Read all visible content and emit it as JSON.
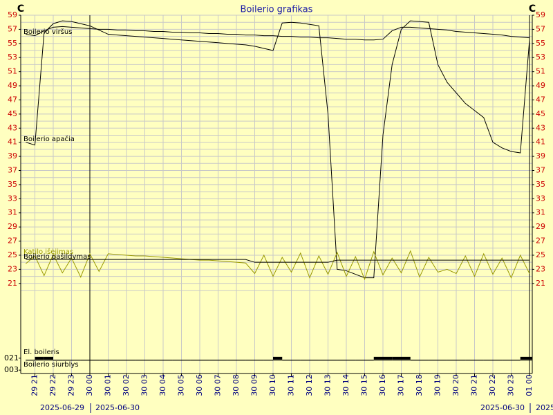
{
  "chart_data": {
    "type": "line",
    "title": "Boilerio grafikas",
    "y_unit": "C",
    "date_labels": [
      "2025-06-29",
      "2025-06-30",
      "2025-06-30",
      "2025"
    ],
    "categories": [
      null,
      "29 21",
      null,
      "29 22",
      null,
      "29 23",
      null,
      "30 00",
      null,
      "30 01",
      null,
      "30 02",
      null,
      "30 03",
      null,
      "30 04",
      null,
      "30 05",
      null,
      "30 06",
      null,
      "30 07",
      null,
      "30 08",
      null,
      "30 09",
      null,
      "30 10",
      null,
      "30 11",
      null,
      "30 12",
      null,
      "30 13",
      null,
      "30 14",
      null,
      "30 15",
      null,
      "30 16",
      null,
      "30 17",
      null,
      "30 18",
      null,
      "30 19",
      null,
      "30 20",
      null,
      "30 21",
      null,
      "30 22",
      null,
      "30 23",
      null,
      "01 00"
    ],
    "ylim": [
      20,
      59
    ],
    "yticks": [
      59,
      57,
      55,
      53,
      51,
      49,
      47,
      45,
      43,
      41,
      39,
      37,
      35,
      33,
      31,
      29,
      27,
      25,
      23,
      21
    ],
    "minor_yticks": [
      58,
      56,
      54,
      52,
      50,
      48,
      46,
      44,
      42,
      40,
      38,
      36,
      34,
      32,
      30,
      28,
      26,
      24,
      22,
      20
    ],
    "y2lim": [
      0,
      24
    ],
    "y2ticks": [
      {
        "value": 21,
        "label": "021"
      },
      {
        "value": 3,
        "label": "003"
      }
    ],
    "grid": true,
    "series": [
      {
        "name": "Boilerio viršus",
        "color": "#000000",
        "values": [
          56.3,
          56.1,
          56.8,
          57.3,
          57.4,
          57.3,
          57.2,
          57.1,
          57.0,
          57.0,
          56.9,
          56.9,
          56.8,
          56.8,
          56.7,
          56.7,
          56.6,
          56.6,
          56.5,
          56.5,
          56.4,
          56.4,
          56.3,
          56.3,
          56.2,
          56.2,
          56.1,
          56.1,
          56.0,
          56.0,
          55.9,
          55.9,
          55.8,
          55.8,
          55.7,
          55.6,
          55.6,
          55.5,
          55.5,
          55.6,
          56.8,
          57.3,
          57.3,
          57.2,
          57.1,
          57.0,
          56.9,
          56.7,
          56.6,
          56.5,
          56.4,
          56.3,
          56.2,
          56.0,
          55.9,
          55.8
        ]
      },
      {
        "name": "Boilerio apačia",
        "color": "#000000",
        "values": [
          41.0,
          40.6,
          56.5,
          57.8,
          58.2,
          58.1,
          57.8,
          57.5,
          56.9,
          56.3,
          56.2,
          56.1,
          56.0,
          55.9,
          55.8,
          55.7,
          55.6,
          55.5,
          55.4,
          55.3,
          55.2,
          55.1,
          55.0,
          54.9,
          54.8,
          54.6,
          54.3,
          54.0,
          57.9,
          58.0,
          57.9,
          57.7,
          57.5,
          45.0,
          23.0,
          22.8,
          22.3,
          21.8,
          21.8,
          42.0,
          52.0,
          57.0,
          58.2,
          58.1,
          58.0,
          52.0,
          49.5,
          48.0,
          46.5,
          45.5,
          44.5,
          41.0,
          40.2,
          39.7,
          39.5,
          55.5
        ]
      },
      {
        "name": "Katilo išėjimas",
        "color": "#999900",
        "values": [
          23.8,
          24.9,
          22.1,
          25.1,
          22.5,
          24.6,
          21.9,
          25.2,
          22.7,
          25.2,
          25.1,
          25.0,
          24.9,
          24.9,
          24.8,
          24.7,
          24.6,
          24.5,
          24.4,
          24.3,
          24.3,
          24.2,
          24.1,
          24.0,
          23.9,
          22.4,
          25.0,
          22.0,
          24.7,
          22.6,
          25.3,
          21.8,
          24.9,
          22.3,
          25.4,
          22.0,
          24.8,
          21.6,
          25.5,
          22.2,
          24.6,
          22.5,
          25.6,
          21.9,
          24.7,
          22.6,
          23.0,
          22.4,
          24.9,
          22.0,
          25.2,
          22.3,
          24.6,
          21.8,
          25.0,
          22.4
        ]
      },
      {
        "name": "Boilerio pašildymas",
        "color": "#000000",
        "values": [
          24.4,
          24.4,
          24.4,
          24.4,
          24.4,
          24.4,
          24.4,
          24.4,
          24.4,
          24.4,
          24.4,
          24.4,
          24.4,
          24.4,
          24.4,
          24.4,
          24.4,
          24.4,
          24.4,
          24.4,
          24.4,
          24.4,
          24.4,
          24.4,
          24.4,
          24.0,
          24.0,
          24.0,
          24.0,
          24.0,
          24.0,
          24.0,
          24.0,
          24.0,
          24.3,
          24.3,
          24.3,
          24.3,
          24.3,
          24.3,
          24.3,
          24.3,
          24.3,
          24.3,
          24.3,
          24.3,
          24.3,
          24.3,
          24.3,
          24.3,
          24.3,
          24.3,
          24.3,
          24.3,
          24.3,
          24.3
        ]
      },
      {
        "name": "El. boileris",
        "color": "#000000",
        "axis": "y2",
        "step": true,
        "values": [
          18,
          21,
          21,
          18,
          18,
          18,
          18,
          18,
          18,
          18,
          18,
          18,
          18,
          18,
          18,
          18,
          18,
          18,
          18,
          18,
          18,
          18,
          18,
          18,
          18,
          18,
          18,
          21,
          18,
          18,
          18,
          18,
          18,
          18,
          18,
          18,
          18,
          18,
          21,
          21,
          21,
          21,
          18,
          18,
          18,
          18,
          18,
          18,
          18,
          18,
          18,
          18,
          18,
          18,
          21,
          21
        ]
      },
      {
        "name": "Boilerio siurblys",
        "color": "#000000",
        "axis": "y2",
        "step": true,
        "values": [
          18,
          18,
          18,
          18,
          18,
          18,
          18,
          18,
          18,
          18,
          18,
          18,
          18,
          18,
          18,
          18,
          18,
          18,
          18,
          18,
          18,
          18,
          18,
          18,
          18,
          18,
          18,
          18,
          18,
          18,
          18,
          18,
          18,
          18,
          18,
          18,
          18,
          18,
          18,
          18,
          18,
          18,
          18,
          18,
          18,
          18,
          18,
          18,
          18,
          18,
          18,
          18,
          18,
          18,
          18,
          18
        ]
      }
    ]
  }
}
